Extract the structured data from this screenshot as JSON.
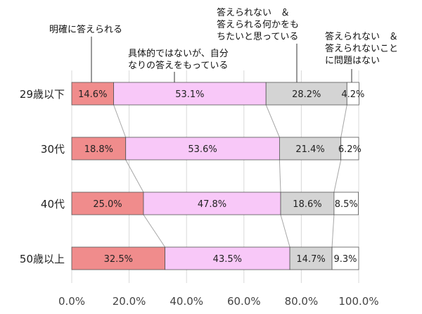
{
  "chart_data": {
    "type": "bar",
    "stacked": true,
    "orientation": "horizontal",
    "percent": true,
    "categories": [
      "29歳以下",
      "30代",
      "40代",
      "50歳以上"
    ],
    "series": [
      {
        "name": "明確に答えられる",
        "values": [
          14.6,
          18.8,
          25.0,
          32.5
        ],
        "labels": [
          "14.6%",
          "18.8%",
          "25.0%",
          "32.5%"
        ],
        "color": "#f08c8c"
      },
      {
        "name": "具体的ではないが、自分\nなりの答えをもっている",
        "values": [
          53.1,
          53.6,
          47.8,
          43.5
        ],
        "labels": [
          "53.1%",
          "53.6%",
          "47.8%",
          "43.5%"
        ],
        "color": "#f8c8f8"
      },
      {
        "name": "答えられない　＆\n答えられる何かをも\nちたいと思っている",
        "values": [
          28.2,
          21.4,
          18.6,
          14.7
        ],
        "labels": [
          "28.2%",
          "21.4%",
          "18.6%",
          "14.7%"
        ],
        "color": "#d4d4d4"
      },
      {
        "name": "答えられない　＆\n答えられないこと\nに問題はない",
        "values": [
          4.2,
          6.2,
          8.5,
          9.3
        ],
        "labels": [
          "4.2%",
          "6.2%",
          "8.5%",
          "9.3%"
        ],
        "color": "#ffffff"
      }
    ],
    "xlim": [
      0,
      100
    ],
    "xticks": [
      "0.0%",
      "20.0%",
      "40.0%",
      "60.0%",
      "80.0%",
      "100.0%"
    ],
    "grid": true,
    "legend": "annotations-top",
    "series_connector_lines": true
  }
}
